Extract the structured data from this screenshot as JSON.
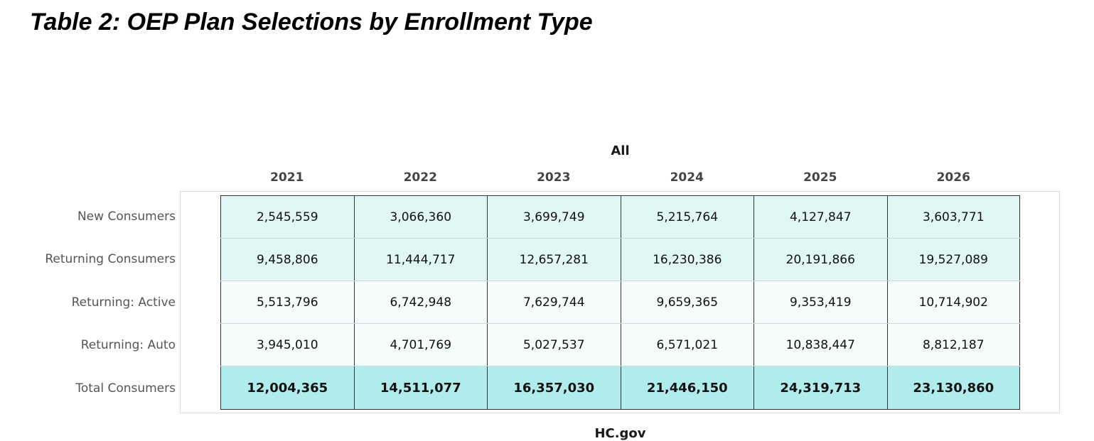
{
  "title": "Table 2: OEP Plan Selections by Enrollment Type",
  "colors": {
    "new_returning_fill": "#e0f7f6",
    "active_auto_fill": "#f5fcfc",
    "total_fill": "#b1ecec"
  },
  "chart_data": {
    "type": "table",
    "title": "Table 2: OEP Plan Selections by Enrollment Type",
    "sections": [
      {
        "name": "All",
        "columns": [
          "2021",
          "2022",
          "2023",
          "2024",
          "2025",
          "2026"
        ],
        "rows": [
          {
            "label": "New Consumers",
            "values": [
              "2,545,559",
              "3,066,360",
              "3,699,749",
              "5,215,764",
              "4,127,847",
              "3,603,771"
            ]
          },
          {
            "label": "Returning Consumers",
            "values": [
              "9,458,806",
              "11,444,717",
              "12,657,281",
              "16,230,386",
              "20,191,866",
              "19,527,089"
            ]
          },
          {
            "label": "Returning: Active",
            "values": [
              "5,513,796",
              "6,742,948",
              "7,629,744",
              "9,659,365",
              "9,353,419",
              "10,714,902"
            ]
          },
          {
            "label": "Returning: Auto",
            "values": [
              "3,945,010",
              "4,701,769",
              "5,027,537",
              "6,571,021",
              "10,838,447",
              "8,812,187"
            ]
          },
          {
            "label": "Total Consumers",
            "values": [
              "12,004,365",
              "14,511,077",
              "16,357,030",
              "21,446,150",
              "24,319,713",
              "23,130,860"
            ],
            "bold": true
          }
        ]
      },
      {
        "name": "HC.gov",
        "columns": [],
        "rows": []
      }
    ]
  }
}
